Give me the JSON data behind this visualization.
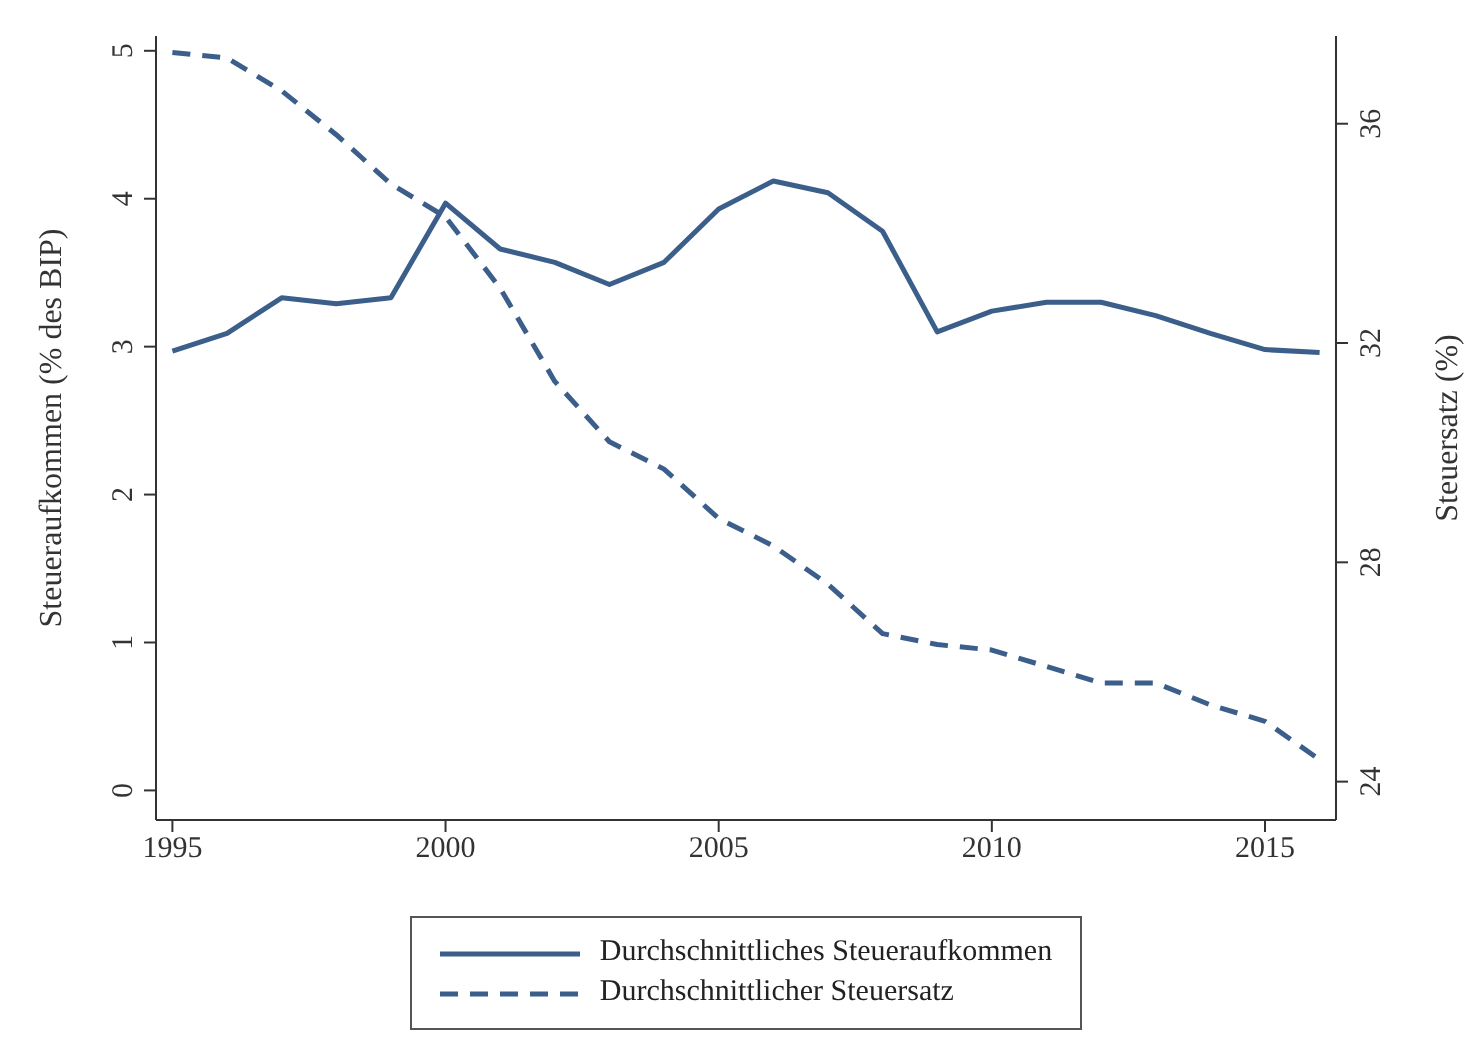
{
  "chart_data": {
    "type": "line",
    "x": [
      1995,
      1996,
      1997,
      1998,
      1999,
      2000,
      2001,
      2002,
      2003,
      2004,
      2005,
      2006,
      2007,
      2008,
      2009,
      2010,
      2011,
      2012,
      2013,
      2014,
      2015,
      2016
    ],
    "series": [
      {
        "name": "Durchschnittliches Steueraufkommen",
        "color": "#3b5f8a",
        "line_style": "solid",
        "values": [
          2.97,
          3.09,
          3.33,
          3.29,
          3.33,
          3.97,
          3.66,
          3.57,
          3.42,
          3.57,
          3.93,
          4.12,
          4.04,
          3.78,
          3.1,
          3.24,
          3.3,
          3.3,
          3.21,
          3.09,
          2.98,
          2.96
        ]
      },
      {
        "name": "Durchschnittlicher Steuersatz",
        "color": "#3b5f8a",
        "line_style": "dashed",
        "axis": "y2",
        "values": [
          37.3,
          37.2,
          36.6,
          35.8,
          34.9,
          34.3,
          33.0,
          31.3,
          30.2,
          29.7,
          28.8,
          28.3,
          27.6,
          26.7,
          26.5,
          26.4,
          26.1,
          25.8,
          25.8,
          25.4,
          25.1,
          24.4
        ]
      }
    ],
    "xlim": [
      1994.7,
      2016.3
    ],
    "xticks": [
      1995,
      2000,
      2005,
      2010,
      2015
    ],
    "ylim": [
      -0.2,
      5.1
    ],
    "yticks": [
      0,
      1,
      2,
      3,
      4,
      5
    ],
    "y2lim": [
      23.3,
      37.6
    ],
    "y2ticks": [
      24,
      28,
      32,
      36
    ],
    "ylabel": "Steueraufkommen (% des BIP)",
    "y2label": "Steuersatz (%)",
    "grid": false,
    "legend": "bottom",
    "marker": "none"
  }
}
